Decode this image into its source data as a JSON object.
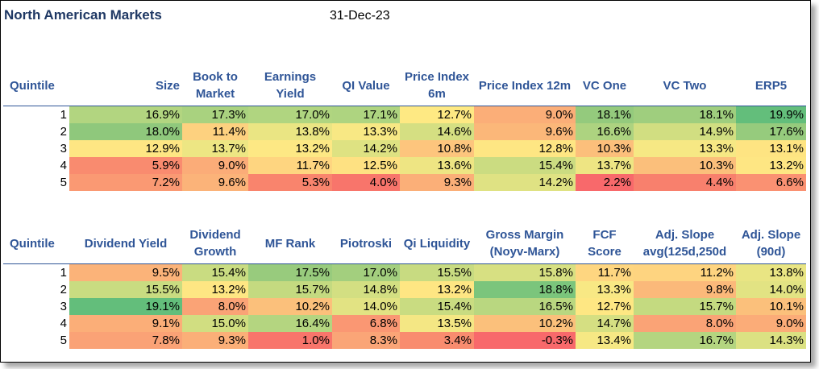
{
  "title": "North American Markets",
  "date": "31-Dec-23",
  "table1": {
    "headers": [
      "Quintile",
      "Size",
      "Book to Market",
      "Earnings Yield",
      "QI Value",
      "Price Index 6m",
      "Price Index 12m",
      "VC One",
      "VC Two",
      "ERP5"
    ],
    "rows": [
      {
        "q": "1",
        "vals": [
          "16.9%",
          "17.3%",
          "17.0%",
          "17.1%",
          "12.7%",
          "9.0%",
          "18.1%",
          "18.1%",
          "19.9%"
        ],
        "colors": [
          "#b2d580",
          "#a9d27f",
          "#b0d580",
          "#aed480",
          "#fee983",
          "#fbae78",
          "#94ca7d",
          "#9fce7e",
          "#63be7b"
        ]
      },
      {
        "q": "2",
        "vals": [
          "18.0%",
          "11.4%",
          "13.8%",
          "13.3%",
          "14.6%",
          "9.6%",
          "16.6%",
          "14.9%",
          "17.6%"
        ],
        "colors": [
          "#8fc87c",
          "#fdd17f",
          "#eae583",
          "#f8e884",
          "#d5df82",
          "#fbb779",
          "#add380",
          "#d1de81",
          "#96cb7d"
        ]
      },
      {
        "q": "3",
        "vals": [
          "12.9%",
          "13.7%",
          "13.2%",
          "14.2%",
          "10.8%",
          "12.8%",
          "10.3%",
          "13.3%",
          "13.1%"
        ],
        "colors": [
          "#fee683",
          "#ede683",
          "#fde884",
          "#dee282",
          "#fdc57d",
          "#fee683",
          "#fcbf7b",
          "#f6e884",
          "#fee482"
        ]
      },
      {
        "q": "4",
        "vals": [
          "5.9%",
          "9.0%",
          "11.7%",
          "12.5%",
          "13.6%",
          "15.4%",
          "13.7%",
          "10.3%",
          "13.2%"
        ],
        "colors": [
          "#f98b6f",
          "#fbac78",
          "#fed580",
          "#fee182",
          "#eee583",
          "#cbdc81",
          "#eee583",
          "#fbbf7b",
          "#fee683"
        ]
      },
      {
        "q": "5",
        "vals": [
          "7.2%",
          "9.6%",
          "5.3%",
          "4.0%",
          "9.3%",
          "14.2%",
          "2.2%",
          "4.4%",
          "6.6%"
        ],
        "colors": [
          "#fa9973",
          "#fbb379",
          "#f9846d",
          "#f8756b",
          "#fbaf78",
          "#dfe283",
          "#f8696b",
          "#f8806d",
          "#fa9172"
        ]
      }
    ]
  },
  "table2": {
    "headers": [
      "Quintile",
      "Dividend Yield",
      "Dividend Growth",
      "MF Rank",
      "Piotroski",
      "Qi Liquidity",
      "Gross Margin (Noyv-Marx)",
      "FCF Score",
      "Adj. Slope avg(125d,250d",
      "Adj. Slope (90d)"
    ],
    "rows": [
      {
        "q": "1",
        "vals": [
          "9.5%",
          "15.4%",
          "17.5%",
          "17.0%",
          "15.5%",
          "15.8%",
          "11.7%",
          "11.2%",
          "13.8%"
        ],
        "colors": [
          "#fbb379",
          "#c9dc81",
          "#98cb7d",
          "#a3cf7e",
          "#c8db81",
          "#d7e082",
          "#fed680",
          "#fed480",
          "#e9e583"
        ]
      },
      {
        "q": "2",
        "vals": [
          "15.5%",
          "13.2%",
          "15.7%",
          "14.8%",
          "13.2%",
          "18.8%",
          "13.3%",
          "9.8%",
          "14.0%"
        ],
        "colors": [
          "#c9dc81",
          "#fee683",
          "#c4da80",
          "#d3df82",
          "#fee683",
          "#7bc57c",
          "#f8e884",
          "#fbb97a",
          "#e2e383"
        ]
      },
      {
        "q": "3",
        "vals": [
          "19.1%",
          "8.0%",
          "10.2%",
          "14.0%",
          "15.4%",
          "16.5%",
          "12.7%",
          "15.7%",
          "10.1%"
        ],
        "colors": [
          "#63be7b",
          "#faa376",
          "#fbc07b",
          "#e2e383",
          "#c9dc81",
          "#b9d780",
          "#fee783",
          "#c4da80",
          "#fbc07b"
        ]
      },
      {
        "q": "4",
        "vals": [
          "9.1%",
          "15.0%",
          "16.4%",
          "6.8%",
          "13.5%",
          "10.2%",
          "14.7%",
          "8.0%",
          "9.0%"
        ],
        "colors": [
          "#fbae78",
          "#d1de81",
          "#b4d580",
          "#fa9773",
          "#f4e784",
          "#fbc07b",
          "#d5df82",
          "#faa376",
          "#fbac78"
        ]
      },
      {
        "q": "5",
        "vals": [
          "7.8%",
          "9.3%",
          "1.0%",
          "8.3%",
          "3.4%",
          "-0.3%",
          "13.4%",
          "16.7%",
          "14.3%"
        ],
        "colors": [
          "#faa276",
          "#fbaf78",
          "#f8756b",
          "#faa577",
          "#f98c6f",
          "#f8696b",
          "#f6e884",
          "#b4d580",
          "#dbe182"
        ]
      }
    ]
  }
}
